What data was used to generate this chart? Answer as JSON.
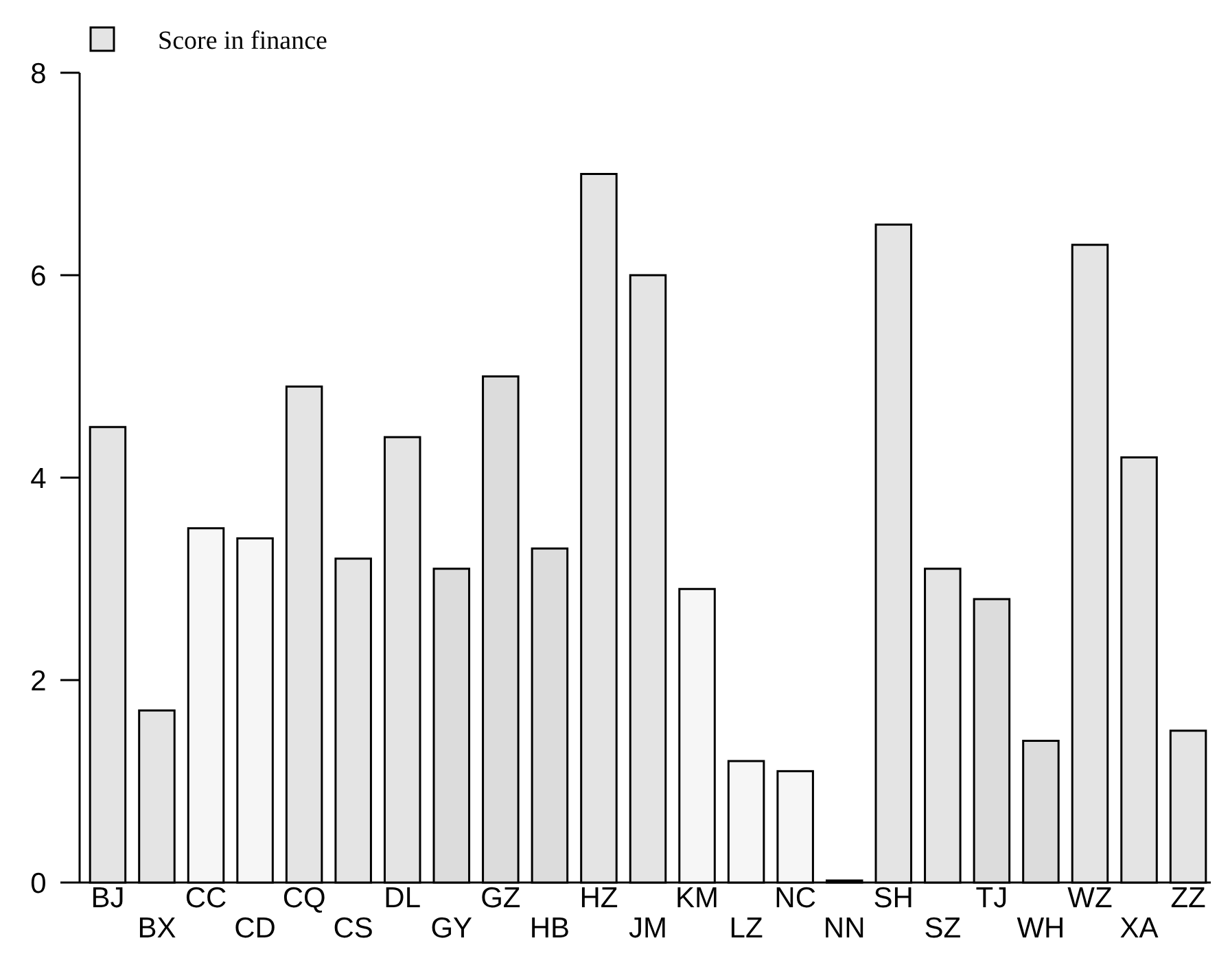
{
  "chart_data": {
    "type": "bar",
    "categories": [
      "BJ",
      "BX",
      "CC",
      "CD",
      "CQ",
      "CS",
      "DL",
      "GY",
      "GZ",
      "HB",
      "HZ",
      "JM",
      "KM",
      "LZ",
      "NC",
      "NN",
      "SH",
      "SZ",
      "TJ",
      "WH",
      "WZ",
      "XA",
      "ZZ"
    ],
    "series": [
      {
        "name": "Score in finance",
        "color": "#e4e4e4",
        "colors": [
          "#e4e4e4",
          "#e4e4e4",
          "#f6f6f6",
          "#f6f6f6",
          "#e4e4e4",
          "#e4e4e4",
          "#e4e4e4",
          "#dcdcdc",
          "#dcdcdc",
          "#dcdcdc",
          "#e4e4e4",
          "#e4e4e4",
          "#f6f6f6",
          "#f6f6f6",
          "#f6f6f6",
          "#e4e4e4",
          "#e4e4e4",
          "#e4e4e4",
          "#dcdcdc",
          "#dcdcdc",
          "#e4e4e4",
          "#e4e4e4",
          "#e4e4e4"
        ],
        "values": [
          4.5,
          1.7,
          3.5,
          3.4,
          4.9,
          3.2,
          4.4,
          3.1,
          5.0,
          3.3,
          7.0,
          6.0,
          2.9,
          1.2,
          1.1,
          0.02,
          6.5,
          3.1,
          2.8,
          1.4,
          6.3,
          4.2,
          1.5
        ]
      }
    ],
    "ylim": [
      0,
      8
    ],
    "yticks": [
      0,
      2,
      4,
      6,
      8
    ],
    "grid": false,
    "legend": "top left"
  }
}
